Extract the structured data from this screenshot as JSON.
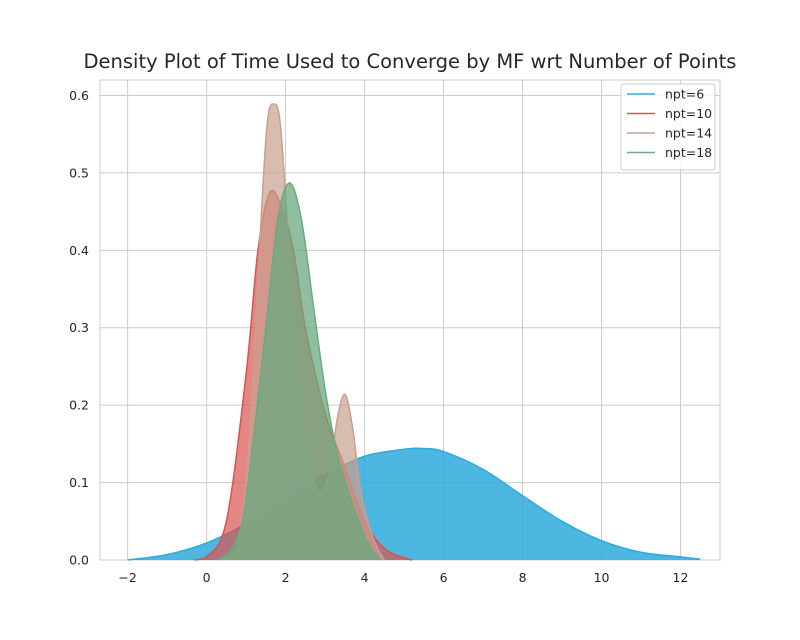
{
  "chart_data": {
    "type": "area",
    "title": "Density Plot of Time Used to Converge by MF wrt Number of Points",
    "xlabel": "",
    "ylabel": "",
    "xlim": [
      -2.7,
      13.0
    ],
    "ylim": [
      0,
      0.62
    ],
    "x_ticks": [
      -2,
      0,
      2,
      4,
      6,
      8,
      10,
      12
    ],
    "x_tick_labels": [
      "−2",
      "0",
      "2",
      "4",
      "6",
      "8",
      "10",
      "12"
    ],
    "y_ticks": [
      0.0,
      0.1,
      0.2,
      0.3,
      0.4,
      0.5,
      0.6
    ],
    "y_tick_labels": [
      "0.0",
      "0.1",
      "0.2",
      "0.3",
      "0.4",
      "0.5",
      "0.6"
    ],
    "grid": true,
    "legend_position": "top-right",
    "series": [
      {
        "name": "npt=6",
        "color": "#2eaadc",
        "fill_opacity": 0.85,
        "points": [
          [
            -2.0,
            0.0
          ],
          [
            -1.0,
            0.007
          ],
          [
            0.0,
            0.022
          ],
          [
            1.0,
            0.047
          ],
          [
            2.0,
            0.078
          ],
          [
            3.0,
            0.11
          ],
          [
            4.0,
            0.134
          ],
          [
            5.0,
            0.143
          ],
          [
            5.5,
            0.144
          ],
          [
            6.0,
            0.14
          ],
          [
            7.0,
            0.117
          ],
          [
            8.0,
            0.083
          ],
          [
            9.0,
            0.05
          ],
          [
            10.0,
            0.025
          ],
          [
            11.0,
            0.01
          ],
          [
            12.0,
            0.004
          ],
          [
            12.5,
            0.001
          ]
        ]
      },
      {
        "name": "npt=10",
        "color": "#d9534f",
        "fill_opacity": 0.7,
        "points": [
          [
            -0.3,
            0.0
          ],
          [
            0.0,
            0.004
          ],
          [
            0.5,
            0.05
          ],
          [
            1.0,
            0.24
          ],
          [
            1.3,
            0.4
          ],
          [
            1.6,
            0.475
          ],
          [
            1.9,
            0.455
          ],
          [
            2.2,
            0.4
          ],
          [
            2.5,
            0.3
          ],
          [
            3.0,
            0.19
          ],
          [
            3.5,
            0.12
          ],
          [
            4.0,
            0.05
          ],
          [
            4.5,
            0.015
          ],
          [
            5.0,
            0.003
          ],
          [
            5.2,
            0.0
          ]
        ]
      },
      {
        "name": "npt=14",
        "color": "#c9a08e",
        "fill_opacity": 0.7,
        "points": [
          [
            0.4,
            0.0
          ],
          [
            0.8,
            0.02
          ],
          [
            1.1,
            0.17
          ],
          [
            1.4,
            0.46
          ],
          [
            1.55,
            0.57
          ],
          [
            1.7,
            0.589
          ],
          [
            1.85,
            0.57
          ],
          [
            2.0,
            0.47
          ],
          [
            2.2,
            0.3
          ],
          [
            2.5,
            0.16
          ],
          [
            2.8,
            0.09
          ],
          [
            3.1,
            0.11
          ],
          [
            3.3,
            0.18
          ],
          [
            3.5,
            0.214
          ],
          [
            3.7,
            0.17
          ],
          [
            3.9,
            0.09
          ],
          [
            4.2,
            0.03
          ],
          [
            4.5,
            0.0
          ]
        ]
      },
      {
        "name": "npt=18",
        "color": "#6aaa80",
        "fill_opacity": 0.75,
        "points": [
          [
            0.3,
            0.0
          ],
          [
            0.7,
            0.02
          ],
          [
            1.0,
            0.08
          ],
          [
            1.5,
            0.3
          ],
          [
            1.8,
            0.44
          ],
          [
            2.1,
            0.487
          ],
          [
            2.4,
            0.44
          ],
          [
            2.7,
            0.33
          ],
          [
            3.0,
            0.22
          ],
          [
            3.3,
            0.14
          ],
          [
            3.7,
            0.07
          ],
          [
            4.1,
            0.02
          ],
          [
            4.4,
            0.0
          ]
        ]
      }
    ]
  }
}
